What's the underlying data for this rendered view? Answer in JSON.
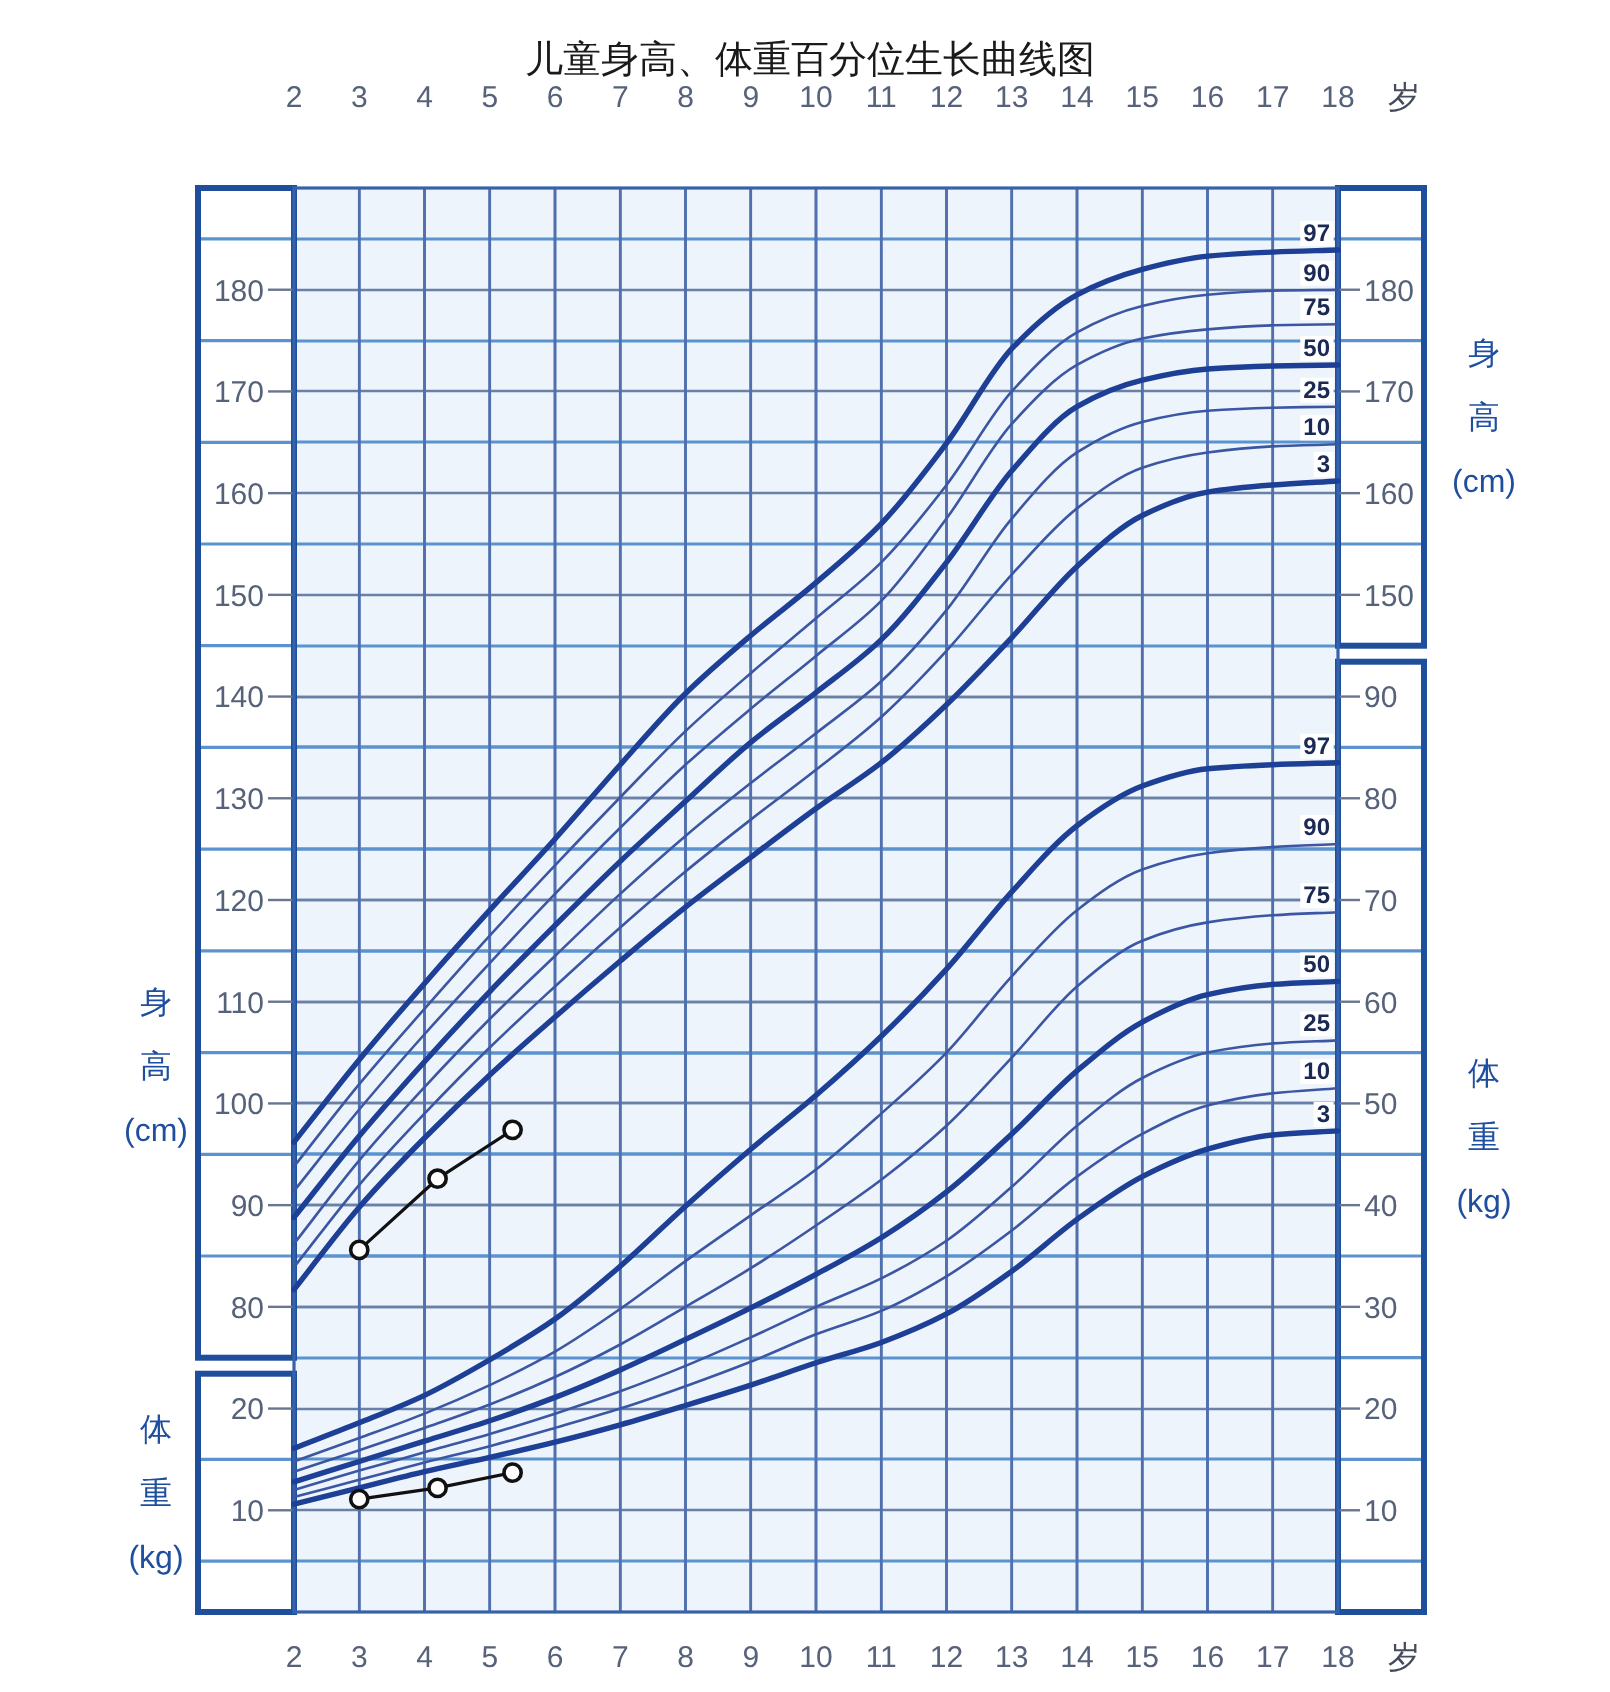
{
  "chart_data": [
    {
      "type": "line",
      "title": "儿童身高、体重百分位生长曲线图",
      "x2label": "岁",
      "ylabel": "身高(cm)",
      "y2label": "身高(cm)",
      "xlim": [
        2,
        18
      ],
      "x2lim": [
        2,
        18
      ],
      "x2ticks": [
        2,
        3,
        4,
        5,
        6,
        7,
        8,
        9,
        10,
        11,
        12,
        13,
        14,
        15,
        16,
        17,
        18
      ],
      "ylim": [
        50,
        190
      ],
      "yticks": [
        80,
        {
          "value": 85,
          "label": null
        },
        90,
        {
          "value": 95,
          "label": null
        },
        100,
        {
          "value": 105,
          "label": null
        },
        110,
        {
          "value": 115,
          "label": null
        },
        120,
        {
          "value": 125,
          "label": null
        },
        130,
        {
          "value": 135,
          "label": null
        },
        140,
        {
          "value": 145,
          "label": null
        },
        150,
        {
          "value": 155,
          "label": null
        },
        160,
        {
          "value": 165,
          "label": null
        },
        170,
        {
          "value": 175,
          "label": null
        },
        180,
        {
          "value": 185,
          "label": null
        }
      ],
      "y2lim": [
        50,
        190
      ],
      "y2ticks": [
        150,
        {
          "value": 155,
          "label": null
        },
        160,
        {
          "value": 165,
          "label": null
        },
        170,
        {
          "value": 175,
          "label": null
        },
        180,
        {
          "value": 185,
          "label": null
        }
      ],
      "grid": true,
      "x": [
        2,
        3,
        4,
        5,
        6,
        7,
        8,
        9,
        10,
        11,
        12,
        13,
        14,
        15,
        16,
        17,
        18
      ],
      "series": [
        {
          "name": "97",
          "color": "#1d3f95",
          "values": [
            96.2,
            104.3,
            111.8,
            119.0,
            126.0,
            133.3,
            140.3,
            146.0,
            151.2,
            157.0,
            164.9,
            174.2,
            179.5,
            182.0,
            183.3,
            183.7,
            183.9
          ]
        },
        {
          "name": "90",
          "color": "#3b56a3",
          "values": [
            93.8,
            101.9,
            109.3,
            116.5,
            123.4,
            130.1,
            136.6,
            142.3,
            147.7,
            153.2,
            160.8,
            170.0,
            175.8,
            178.4,
            179.5,
            179.9,
            180.0
          ]
        },
        {
          "name": "75",
          "color": "#3b56a3",
          "values": [
            91.4,
            99.4,
            106.8,
            113.8,
            120.6,
            127.1,
            133.3,
            138.8,
            144.0,
            149.4,
            157.5,
            166.8,
            172.6,
            175.2,
            176.1,
            176.5,
            176.6
          ]
        },
        {
          "name": "50",
          "color": "#1d3f95",
          "values": [
            88.8,
            96.8,
            104.1,
            111.0,
            117.5,
            123.8,
            129.7,
            135.5,
            140.4,
            145.6,
            153.2,
            162.2,
            168.5,
            171.1,
            172.2,
            172.5,
            172.6
          ]
        },
        {
          "name": "25",
          "color": "#3b56a3",
          "values": [
            86.2,
            94.4,
            101.6,
            108.3,
            114.5,
            120.6,
            126.3,
            131.5,
            136.4,
            141.5,
            148.5,
            157.5,
            164.0,
            167.0,
            168.1,
            168.4,
            168.5
          ]
        },
        {
          "name": "10",
          "color": "#3b56a3",
          "values": [
            83.9,
            92.0,
            99.0,
            105.5,
            111.5,
            117.3,
            122.8,
            127.9,
            132.8,
            138.0,
            144.5,
            152.0,
            158.5,
            162.5,
            164.0,
            164.6,
            164.8
          ]
        },
        {
          "name": "3",
          "color": "#1d3f95",
          "values": [
            81.7,
            89.8,
            96.6,
            102.8,
            108.5,
            114.0,
            119.3,
            124.2,
            129.0,
            133.5,
            139.2,
            145.8,
            152.8,
            157.8,
            160.1,
            160.8,
            161.2
          ]
        },
        {
          "color": "#111111",
          "marker": "circle",
          "x": [
            3,
            4.2,
            5.35
          ],
          "values": [
            85.6,
            92.6,
            97.4
          ]
        }
      ]
    },
    {
      "type": "line",
      "xlabel": "岁",
      "ylabel": "体重(kg)",
      "y2label": "体重(kg)",
      "xlim": [
        2,
        18
      ],
      "xticks": [
        2,
        3,
        4,
        5,
        6,
        7,
        8,
        9,
        10,
        11,
        12,
        13,
        14,
        15,
        16,
        17,
        18
      ],
      "ylim": [
        0,
        140
      ],
      "yticks": [
        {
          "value": 5,
          "label": null
        },
        10,
        {
          "value": 15,
          "label": null
        },
        20
      ],
      "y2lim": [
        0,
        140
      ],
      "y2ticks": [
        {
          "value": 5,
          "label": null
        },
        10,
        {
          "value": 15,
          "label": null
        },
        20,
        {
          "value": 25,
          "label": null
        },
        30,
        {
          "value": 35,
          "label": null
        },
        40,
        {
          "value": 45,
          "label": null
        },
        50,
        {
          "value": 55,
          "label": null
        },
        60,
        {
          "value": 65,
          "label": null
        },
        70,
        {
          "value": 75,
          "label": null
        },
        80,
        {
          "value": 85,
          "label": null
        },
        90
      ],
      "grid": true,
      "x": [
        2,
        3,
        4,
        5,
        6,
        7,
        8,
        9,
        10,
        11,
        12,
        13,
        14,
        15,
        16,
        17,
        18
      ],
      "series": [
        {
          "name": "97",
          "color": "#1d3f95",
          "values": [
            16.1,
            18.6,
            21.3,
            24.8,
            28.8,
            34.0,
            39.9,
            45.5,
            50.8,
            56.6,
            63.2,
            70.8,
            77.3,
            81.2,
            82.9,
            83.3,
            83.5
          ]
        },
        {
          "name": "90",
          "color": "#3b56a3",
          "values": [
            14.8,
            17.1,
            19.5,
            22.3,
            25.6,
            29.8,
            34.5,
            39.0,
            43.5,
            49.0,
            55.0,
            62.5,
            69.0,
            73.0,
            74.6,
            75.2,
            75.5
          ]
        },
        {
          "name": "75",
          "color": "#3b56a3",
          "values": [
            13.8,
            15.9,
            18.1,
            20.4,
            23.1,
            26.3,
            30.0,
            33.8,
            38.0,
            42.5,
            47.8,
            54.5,
            61.5,
            66.0,
            67.8,
            68.5,
            68.8
          ]
        },
        {
          "name": "50",
          "color": "#1d3f95",
          "values": [
            12.8,
            14.8,
            16.8,
            18.8,
            21.1,
            23.8,
            26.8,
            29.9,
            33.2,
            36.8,
            41.3,
            47.0,
            53.2,
            58.0,
            60.7,
            61.7,
            62.0
          ]
        },
        {
          "name": "25",
          "color": "#3b56a3",
          "values": [
            12.0,
            13.9,
            15.7,
            17.5,
            19.5,
            21.7,
            24.2,
            27.0,
            30.0,
            32.8,
            36.5,
            41.8,
            47.8,
            52.5,
            55.0,
            55.9,
            56.2
          ]
        },
        {
          "name": "10",
          "color": "#3b56a3",
          "values": [
            11.3,
            13.0,
            14.7,
            16.3,
            18.1,
            20.0,
            22.2,
            24.6,
            27.3,
            29.6,
            33.0,
            37.5,
            42.8,
            47.0,
            49.8,
            51.0,
            51.5
          ]
        },
        {
          "name": "3",
          "color": "#1d3f95",
          "values": [
            10.6,
            12.2,
            13.8,
            15.2,
            16.7,
            18.4,
            20.3,
            22.3,
            24.5,
            26.5,
            29.3,
            33.5,
            38.6,
            42.8,
            45.5,
            46.9,
            47.3
          ]
        },
        {
          "color": "#111111",
          "marker": "circle",
          "x": [
            3,
            4.2,
            5.35
          ],
          "values": [
            11.1,
            12.2,
            13.7
          ]
        }
      ]
    }
  ]
}
